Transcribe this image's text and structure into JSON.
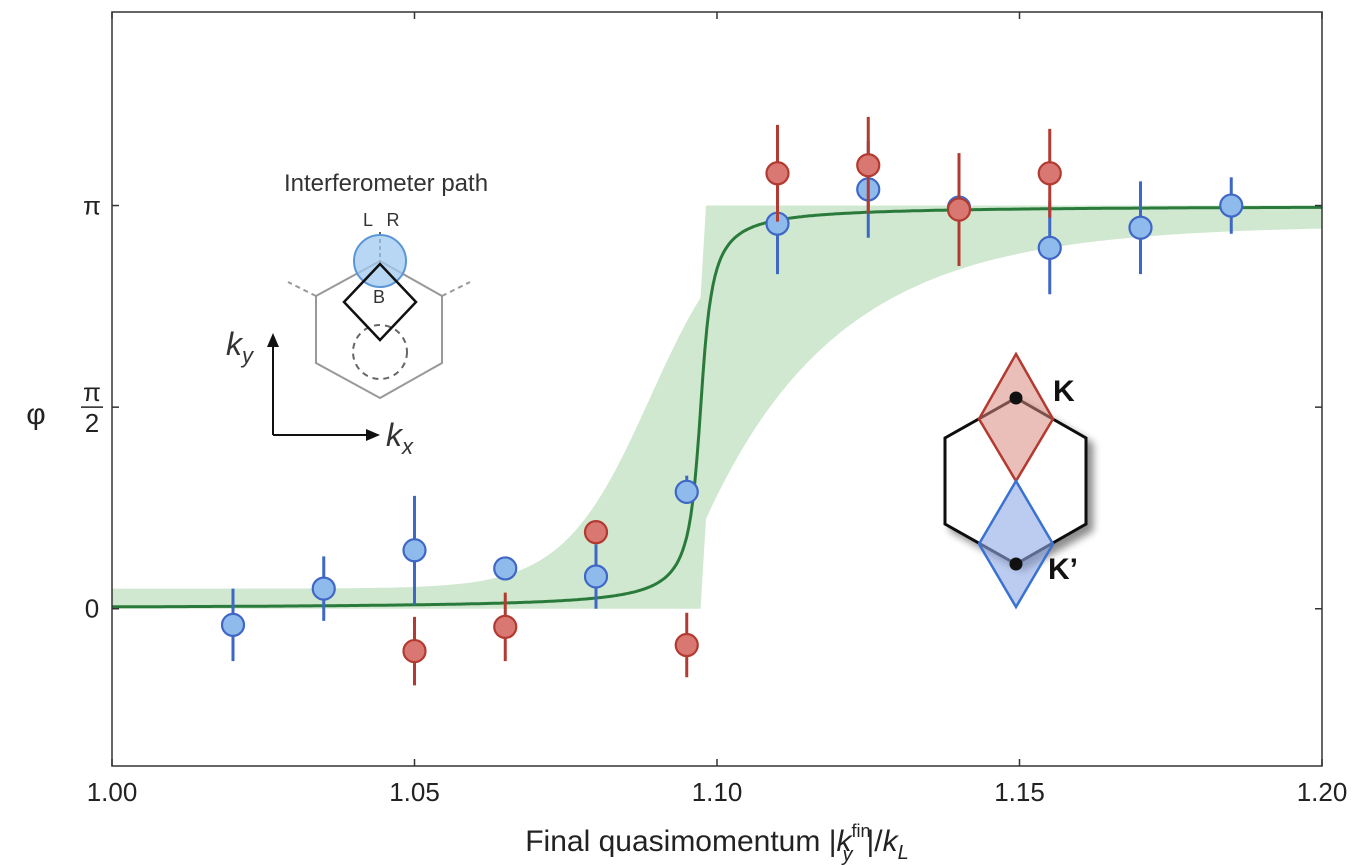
{
  "chart_data": {
    "type": "scatter",
    "title": "",
    "xlabel": {
      "prefix": "Final quasimomentum |",
      "k": "k",
      "sup": "fin",
      "sub": "y",
      "mid": "|/",
      "k2": "k",
      "sub2": "L"
    },
    "ylabel": "φ",
    "xlim": [
      1.0,
      1.2
    ],
    "ylim": [
      -0.39,
      1.48
    ],
    "x_ticks": [
      {
        "value": 1.0,
        "label": "1.00"
      },
      {
        "value": 1.05,
        "label": "1.05"
      },
      {
        "value": 1.1,
        "label": "1.10"
      },
      {
        "value": 1.15,
        "label": "1.15"
      },
      {
        "value": 1.2,
        "label": "1.20"
      }
    ],
    "y_ticks": [
      {
        "value": 0,
        "label": "0"
      },
      {
        "value": 0.5,
        "label_num": "π",
        "label_den": "2"
      },
      {
        "value": 1,
        "label": "π"
      }
    ],
    "series": [
      {
        "color": "#3f67c5",
        "fill": "#8fbbec",
        "points": [
          {
            "x": 1.02,
            "y": -0.04,
            "lo": -0.13,
            "hi": 0.05
          },
          {
            "x": 1.035,
            "y": 0.05,
            "lo": -0.03,
            "hi": 0.13
          },
          {
            "x": 1.05,
            "y": 0.145,
            "lo": 0.01,
            "hi": 0.28
          },
          {
            "x": 1.065,
            "y": 0.1,
            "lo": 0.1,
            "hi": 0.1
          },
          {
            "x": 1.08,
            "y": 0.08,
            "lo": 0.0,
            "hi": 0.16
          },
          {
            "x": 1.095,
            "y": 0.29,
            "lo": 0.26,
            "hi": 0.33
          },
          {
            "x": 1.11,
            "y": 0.955,
            "lo": 0.83,
            "hi": 1.08
          },
          {
            "x": 1.125,
            "y": 1.04,
            "lo": 0.92,
            "hi": 1.16
          },
          {
            "x": 1.14,
            "y": 0.995,
            "lo": 0.92,
            "hi": 1.07
          },
          {
            "x": 1.155,
            "y": 0.895,
            "lo": 0.78,
            "hi": 1.01
          },
          {
            "x": 1.17,
            "y": 0.945,
            "lo": 0.83,
            "hi": 1.06
          },
          {
            "x": 1.185,
            "y": 1.0,
            "lo": 0.93,
            "hi": 1.07
          }
        ]
      },
      {
        "color": "#b33a30",
        "fill": "#d97872",
        "points": [
          {
            "x": 1.05,
            "y": -0.105,
            "lo": -0.19,
            "hi": -0.02
          },
          {
            "x": 1.065,
            "y": -0.045,
            "lo": -0.13,
            "hi": 0.04
          },
          {
            "x": 1.08,
            "y": 0.19,
            "lo": 0.19,
            "hi": 0.19
          },
          {
            "x": 1.095,
            "y": -0.09,
            "lo": -0.17,
            "hi": -0.01
          },
          {
            "x": 1.11,
            "y": 1.08,
            "lo": 0.96,
            "hi": 1.2
          },
          {
            "x": 1.125,
            "y": 1.1,
            "lo": 0.98,
            "hi": 1.22
          },
          {
            "x": 1.14,
            "y": 0.99,
            "lo": 0.85,
            "hi": 1.13
          },
          {
            "x": 1.155,
            "y": 1.08,
            "lo": 0.97,
            "hi": 1.19
          }
        ]
      }
    ],
    "fit": {
      "color": "#2a7a3c",
      "x0": 1.0973,
      "width": 0.00145
    },
    "band": {
      "color": "#cfe8cf",
      "x0": 1.0975,
      "low_width": 0.0045,
      "high_width": 0.016
    },
    "insets": {
      "path_title": "Interferometer path",
      "label_L": "L",
      "label_R": "R",
      "label_B": "B",
      "axis_ky": {
        "k": "k",
        "sub": "y"
      },
      "axis_kx": {
        "k": "k",
        "sub": "x"
      },
      "label_K": "K",
      "label_Kp": "K’"
    }
  }
}
